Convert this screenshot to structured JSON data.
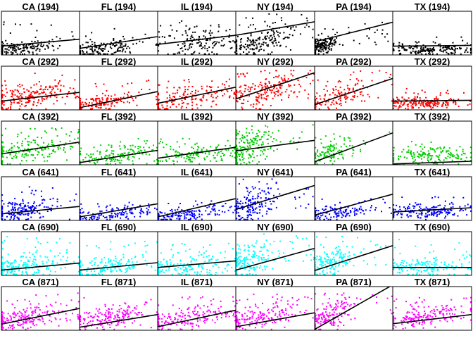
{
  "chart_data": {
    "type": "scatter",
    "layout": "small-multiples grid, 6 rows x 6 columns",
    "columns": [
      "CA",
      "FL",
      "IL",
      "NY",
      "PA",
      "TX"
    ],
    "rows": [
      {
        "group": "194",
        "color": "#000000"
      },
      {
        "group": "292",
        "color": "#FF0000"
      },
      {
        "group": "392",
        "color": "#00CD00"
      },
      {
        "group": "641",
        "color": "#0000FF"
      },
      {
        "group": "690",
        "color": "#00FFFF"
      },
      {
        "group": "871",
        "color": "#FF00FF"
      }
    ],
    "panel_titles": [
      [
        "CA (194)",
        "FL (194)",
        "IL (194)",
        "NY (194)",
        "PA (194)",
        "TX (194)"
      ],
      [
        "CA (292)",
        "FL (292)",
        "IL (292)",
        "NY (292)",
        "PA (292)",
        "TX (292)"
      ],
      [
        "CA (392)",
        "FL (392)",
        "IL (392)",
        "NY (392)",
        "PA (392)",
        "TX (392)"
      ],
      [
        "CA (641)",
        "FL (641)",
        "IL (641)",
        "NY (641)",
        "PA (641)",
        "TX (641)"
      ],
      [
        "CA (690)",
        "FL (690)",
        "IL (690)",
        "NY (690)",
        "PA (690)",
        "TX (690)"
      ],
      [
        "CA (871)",
        "FL (871)",
        "IL (871)",
        "NY (871)",
        "PA (871)",
        "TX (871)"
      ]
    ],
    "x_range": [
      0,
      1
    ],
    "y_range": [
      0,
      1
    ],
    "axes_shown": false,
    "trend_line_color": "#000000",
    "trend_lines": [
      [
        [
          0.2,
          0.36
        ],
        [
          0.15,
          0.42
        ],
        [
          0.24,
          0.45
        ],
        [
          0.45,
          0.76
        ],
        [
          0.3,
          0.75
        ],
        [
          0.2,
          0.22
        ]
      ],
      [
        [
          0.2,
          0.4
        ],
        [
          0.05,
          0.42
        ],
        [
          0.15,
          0.52
        ],
        [
          0.25,
          0.85
        ],
        [
          0.12,
          0.72
        ],
        [
          0.2,
          0.22
        ]
      ],
      [
        [
          0.25,
          0.52
        ],
        [
          0.05,
          0.33
        ],
        [
          0.15,
          0.4
        ],
        [
          0.32,
          0.56
        ],
        [
          0.07,
          0.73
        ],
        [
          0.02,
          0.08
        ]
      ],
      [
        [
          0.15,
          0.32
        ],
        [
          0.08,
          0.38
        ],
        [
          0.08,
          0.5
        ],
        [
          0.25,
          0.8
        ],
        [
          0.12,
          0.6
        ],
        [
          0.19,
          0.29
        ]
      ],
      [
        [
          0.12,
          0.28
        ],
        [
          0.12,
          0.29
        ],
        [
          0.18,
          0.33
        ],
        [
          0.12,
          0.62
        ],
        [
          0.11,
          0.68
        ],
        [
          0.18,
          0.18
        ]
      ],
      [
        [
          0.14,
          0.5
        ],
        [
          0.07,
          0.36
        ],
        [
          0.08,
          0.46
        ],
        [
          0.08,
          0.4
        ],
        [
          0.02,
          1.04
        ],
        [
          0.15,
          0.36
        ]
      ]
    ],
    "point_clouds": [
      [
        {
          "n": 170,
          "cx": 0.22,
          "cy": 0.14,
          "sx": 0.26,
          "sy": 0.08,
          "spread": 0.05,
          "outliers": 15,
          "yMax": 0.8
        },
        {
          "n": 140,
          "cx": 0.28,
          "cy": 0.12,
          "sx": 0.25,
          "sy": 0.1,
          "spread": 0.08,
          "outliers": 12,
          "yMax": 0.6
        },
        {
          "n": 120,
          "cx": 0.5,
          "cy": 0.26,
          "sx": 0.26,
          "sy": 0.18,
          "spread": 0.04,
          "outliers": 30,
          "yMax": 0.8
        },
        {
          "n": 150,
          "cx": 0.25,
          "cy": 0.18,
          "sx": 0.22,
          "sy": 0.12,
          "spread": 0.4,
          "outliers": 40,
          "yMax": 0.95
        },
        {
          "n": 150,
          "cx": 0.1,
          "cy": 0.2,
          "sx": 0.1,
          "sy": 0.08,
          "spread": 0.2,
          "outliers": 25,
          "yMax": 0.75
        },
        {
          "n": 170,
          "cx": 0.45,
          "cy": 0.12,
          "sx": 0.3,
          "sy": 0.06,
          "spread": 0.0,
          "outliers": 15,
          "yMax": 0.45
        }
      ],
      [
        {
          "n": 180,
          "cx": 0.35,
          "cy": 0.25,
          "sx": 0.28,
          "sy": 0.12,
          "spread": 0.15,
          "outliers": 30,
          "yMax": 0.85
        },
        {
          "n": 140,
          "cx": 0.3,
          "cy": 0.15,
          "sx": 0.25,
          "sy": 0.08,
          "spread": 0.1,
          "outliers": 20,
          "yMax": 0.7
        },
        {
          "n": 140,
          "cx": 0.4,
          "cy": 0.22,
          "sx": 0.28,
          "sy": 0.12,
          "spread": 0.15,
          "outliers": 25,
          "yMax": 0.7
        },
        {
          "n": 160,
          "cx": 0.35,
          "cy": 0.35,
          "sx": 0.25,
          "sy": 0.15,
          "spread": 0.3,
          "outliers": 40,
          "yMax": 0.9
        },
        {
          "n": 120,
          "cx": 0.25,
          "cy": 0.2,
          "sx": 0.2,
          "sy": 0.1,
          "spread": 0.35,
          "outliers": 30,
          "yMax": 0.9
        },
        {
          "n": 180,
          "cx": 0.4,
          "cy": 0.15,
          "sx": 0.25,
          "sy": 0.06,
          "spread": 0.03,
          "outliers": 25,
          "yMax": 0.5
        }
      ],
      [
        {
          "n": 160,
          "cx": 0.35,
          "cy": 0.28,
          "sx": 0.28,
          "sy": 0.15,
          "spread": 0.15,
          "outliers": 25,
          "yMax": 0.85
        },
        {
          "n": 130,
          "cx": 0.45,
          "cy": 0.18,
          "sx": 0.28,
          "sy": 0.1,
          "spread": 0.05,
          "outliers": 20,
          "yMax": 0.6
        },
        {
          "n": 130,
          "cx": 0.45,
          "cy": 0.2,
          "sx": 0.28,
          "sy": 0.1,
          "spread": 0.05,
          "outliers": 25,
          "yMax": 0.6
        },
        {
          "n": 150,
          "cx": 0.15,
          "cy": 0.35,
          "sx": 0.15,
          "sy": 0.2,
          "spread": 0.3,
          "outliers": 35,
          "yMax": 0.95
        },
        {
          "n": 110,
          "cx": 0.2,
          "cy": 0.25,
          "sx": 0.15,
          "sy": 0.12,
          "spread": 0.2,
          "outliers": 15,
          "yMax": 0.8
        },
        {
          "n": 150,
          "cx": 0.45,
          "cy": 0.18,
          "sx": 0.28,
          "sy": 0.1,
          "spread": 0.0,
          "outliers": 20,
          "yMax": 0.55
        }
      ],
      [
        {
          "n": 170,
          "cx": 0.25,
          "cy": 0.22,
          "sx": 0.22,
          "sy": 0.12,
          "spread": 0.05,
          "outliers": 25,
          "yMax": 0.8
        },
        {
          "n": 130,
          "cx": 0.4,
          "cy": 0.13,
          "sx": 0.3,
          "sy": 0.08,
          "spread": 0.03,
          "outliers": 15,
          "yMax": 0.45
        },
        {
          "n": 140,
          "cx": 0.35,
          "cy": 0.12,
          "sx": 0.28,
          "sy": 0.07,
          "spread": 0.02,
          "outliers": 20,
          "yMax": 0.45
        },
        {
          "n": 140,
          "cx": 0.2,
          "cy": 0.28,
          "sx": 0.15,
          "sy": 0.15,
          "spread": 0.35,
          "outliers": 40,
          "yMax": 0.95
        },
        {
          "n": 120,
          "cx": 0.25,
          "cy": 0.15,
          "sx": 0.22,
          "sy": 0.08,
          "spread": 0.05,
          "outliers": 20,
          "yMax": 0.5
        },
        {
          "n": 170,
          "cx": 0.4,
          "cy": 0.2,
          "sx": 0.28,
          "sy": 0.08,
          "spread": 0.0,
          "outliers": 25,
          "yMax": 0.55
        }
      ],
      [
        {
          "n": 170,
          "cx": 0.25,
          "cy": 0.18,
          "sx": 0.25,
          "sy": 0.12,
          "spread": 0.1,
          "outliers": 30,
          "yMax": 0.9
        },
        {
          "n": 150,
          "cx": 0.3,
          "cy": 0.17,
          "sx": 0.28,
          "sy": 0.12,
          "spread": 0.05,
          "outliers": 25,
          "yMax": 0.8
        },
        {
          "n": 150,
          "cx": 0.35,
          "cy": 0.18,
          "sx": 0.3,
          "sy": 0.12,
          "spread": 0.03,
          "outliers": 25,
          "yMax": 0.75
        },
        {
          "n": 150,
          "cx": 0.15,
          "cy": 0.3,
          "sx": 0.15,
          "sy": 0.18,
          "spread": 0.3,
          "outliers": 35,
          "yMax": 0.98
        },
        {
          "n": 140,
          "cx": 0.2,
          "cy": 0.22,
          "sx": 0.15,
          "sy": 0.15,
          "spread": 0.25,
          "outliers": 25,
          "yMax": 0.9
        },
        {
          "n": 150,
          "cx": 0.4,
          "cy": 0.18,
          "sx": 0.28,
          "sy": 0.1,
          "spread": 0.0,
          "outliers": 25,
          "yMax": 0.85
        }
      ],
      [
        {
          "n": 180,
          "cx": 0.3,
          "cy": 0.22,
          "sx": 0.25,
          "sy": 0.12,
          "spread": 0.2,
          "outliers": 30,
          "yMax": 0.85
        },
        {
          "n": 160,
          "cx": 0.35,
          "cy": 0.22,
          "sx": 0.25,
          "sy": 0.12,
          "spread": 0.15,
          "outliers": 25,
          "yMax": 0.75
        },
        {
          "n": 160,
          "cx": 0.4,
          "cy": 0.22,
          "sx": 0.28,
          "sy": 0.12,
          "spread": 0.15,
          "outliers": 25,
          "yMax": 0.8
        },
        {
          "n": 150,
          "cx": 0.3,
          "cy": 0.22,
          "sx": 0.25,
          "sy": 0.12,
          "spread": 0.2,
          "outliers": 35,
          "yMax": 0.85
        },
        {
          "n": 150,
          "cx": 0.2,
          "cy": 0.25,
          "sx": 0.15,
          "sy": 0.15,
          "spread": 0.45,
          "outliers": 25,
          "yMax": 0.85
        },
        {
          "n": 170,
          "cx": 0.4,
          "cy": 0.25,
          "sx": 0.28,
          "sy": 0.1,
          "spread": 0.15,
          "outliers": 25,
          "yMax": 0.75
        }
      ]
    ]
  }
}
